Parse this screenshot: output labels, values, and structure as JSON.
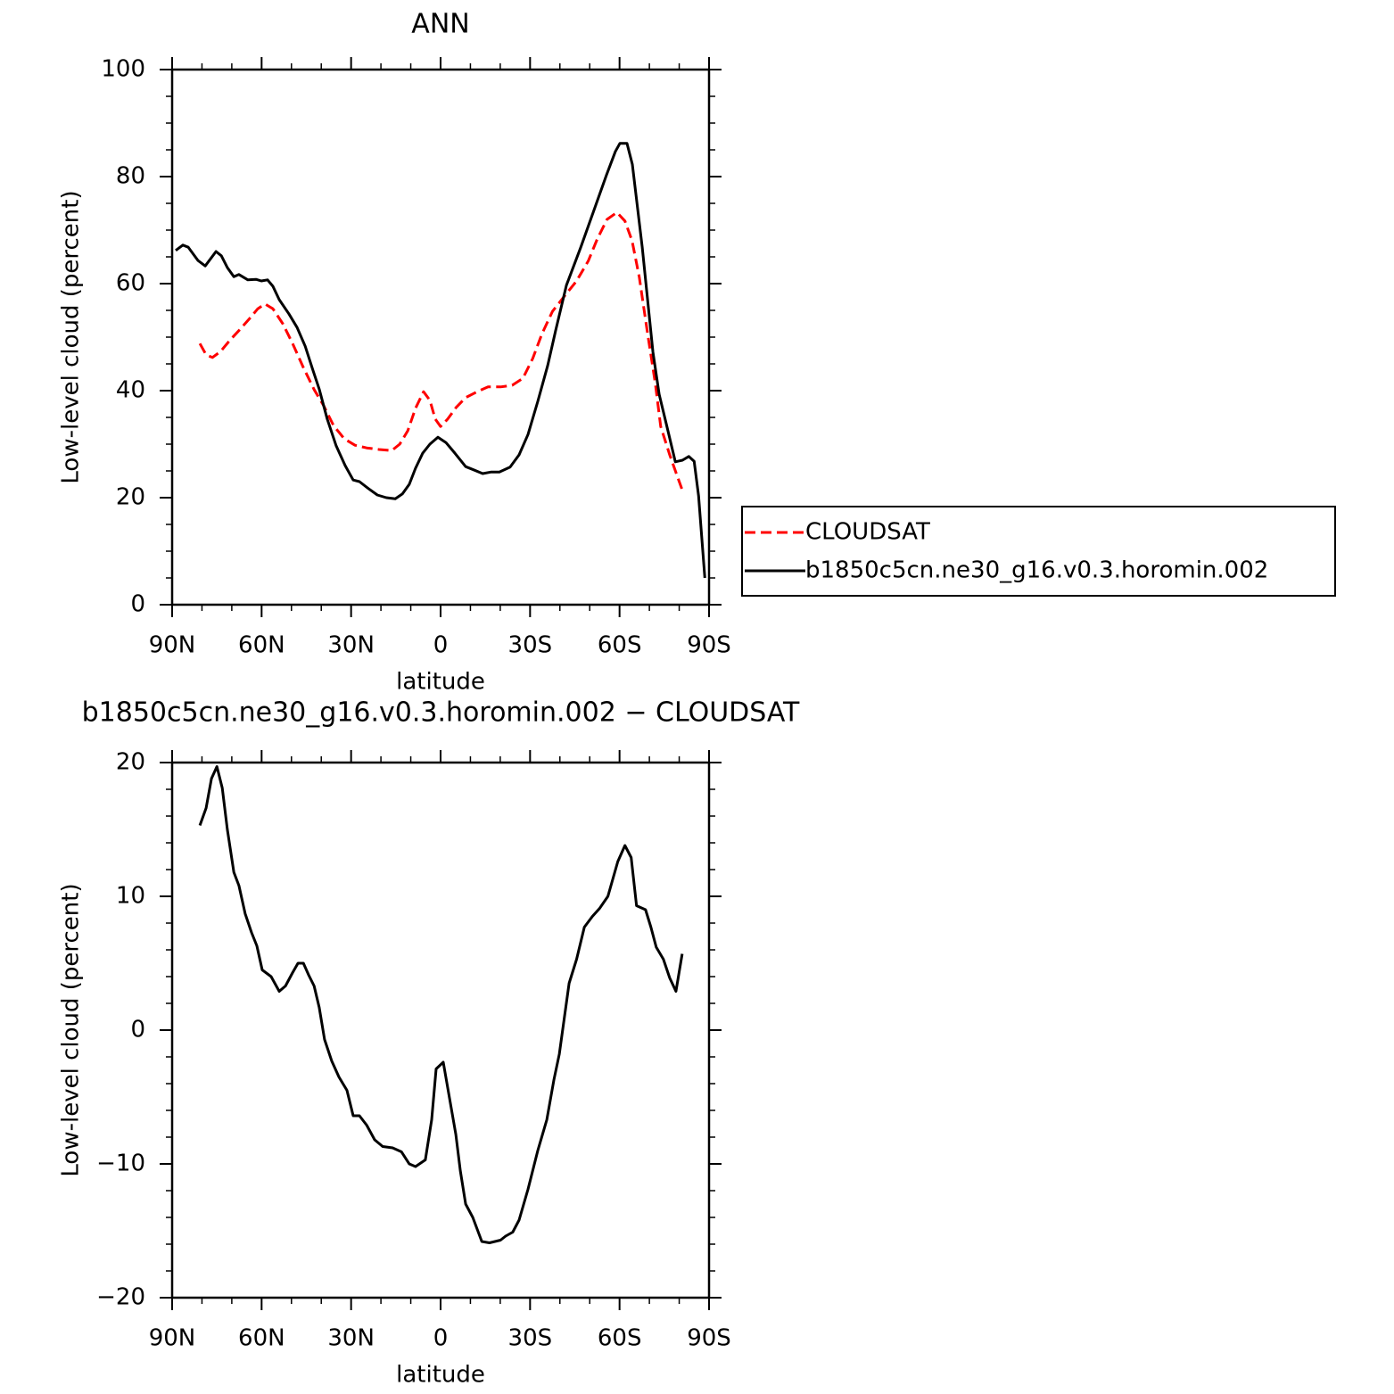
{
  "chart_data": [
    {
      "type": "line",
      "title": "ANN",
      "xlabel": "latitude",
      "ylabel": "Low-level cloud (percent)",
      "xlim": [
        90,
        -90
      ],
      "xticks": [
        {
          "value": 90,
          "label": "90N"
        },
        {
          "value": 60,
          "label": "60N"
        },
        {
          "value": 30,
          "label": "30N"
        },
        0,
        {
          "value": -30,
          "label": "30S"
        },
        {
          "value": -60,
          "label": "60S"
        },
        {
          "value": -90,
          "label": "90S"
        }
      ],
      "xminorticks": [
        80,
        70,
        50,
        40,
        20,
        10,
        -10,
        -20,
        -40,
        -50,
        -70,
        -80
      ],
      "ylim": [
        0,
        100
      ],
      "yticks": [
        0,
        20,
        40,
        60,
        80,
        100
      ],
      "yminorticks": [
        5,
        10,
        15,
        25,
        30,
        35,
        45,
        50,
        55,
        65,
        70,
        75,
        85,
        90,
        95
      ],
      "legend": "right",
      "series": [
        {
          "name": "CLOUDSAT",
          "color": "#ff0000",
          "style": "dashed",
          "x": [
            80.7,
            78.6,
            76.5,
            73.8,
            70.5,
            67.5,
            64,
            61.3,
            58.9,
            56.2,
            52.9,
            49.6,
            46,
            42.4,
            39.2,
            35.9,
            32.3,
            28.7,
            24.8,
            20.6,
            16.4,
            13.7,
            11,
            8.4,
            5.7,
            3.6,
            1.8,
            0,
            -2.4,
            -5.1,
            -8.4,
            -12.3,
            -15.9,
            -20.1,
            -24,
            -27.6,
            -30.9,
            -33.9,
            -37.5,
            -41.7,
            -45.6,
            -49.5,
            -52.5,
            -55.8,
            -59.1,
            -61.8,
            -64.2,
            -66.6,
            -69.3,
            -72,
            -73.8,
            -76.8,
            -78.9,
            -81.3
          ],
          "values": [
            48.8,
            46.7,
            46.2,
            47.3,
            49.5,
            51.3,
            53.5,
            55.3,
            56.2,
            55.3,
            52.5,
            48.8,
            44.3,
            40.2,
            37.2,
            33.5,
            31,
            29.8,
            29.3,
            29,
            28.8,
            30,
            32.5,
            36.7,
            39.8,
            38.2,
            34.7,
            33.3,
            34.7,
            36.8,
            38.7,
            39.8,
            40.7,
            40.7,
            41,
            42.3,
            46,
            50.5,
            54.8,
            57.8,
            60.5,
            64.2,
            68.3,
            72,
            73.3,
            71.7,
            68,
            61.3,
            51,
            41.3,
            33.3,
            28,
            24.7,
            21
          ]
        },
        {
          "name": "b1850c5cn.ne30_g16.v0.3.horomin.002",
          "color": "#000000",
          "style": "solid",
          "x": [
            88.8,
            86.4,
            84.6,
            81.3,
            78.9,
            75.3,
            73.5,
            71.5,
            69.3,
            67.6,
            64.6,
            61.9,
            60.1,
            58,
            56.2,
            54.1,
            50.8,
            48.1,
            45.4,
            42.8,
            40.7,
            38,
            35,
            32,
            29.3,
            27.2,
            24.2,
            21.2,
            18.2,
            15.2,
            12.8,
            10.5,
            8.4,
            6,
            3.6,
            0.9,
            -1.8,
            -4.5,
            -8.4,
            -11.1,
            -14.1,
            -17,
            -19.7,
            -23.3,
            -26.3,
            -29.3,
            -32.6,
            -35.9,
            -38.6,
            -42.2,
            -47,
            -51.8,
            -55.6,
            -58.6,
            -60.1,
            -62.5,
            -64.3,
            -67.6,
            -71.2,
            -73.3,
            -76,
            -78.7,
            -81.1,
            -83.2,
            -85,
            -86.5,
            -88.6
          ],
          "values": [
            66.2,
            67.2,
            66.8,
            64.3,
            63.3,
            66,
            65.2,
            63,
            61.3,
            61.7,
            60.7,
            60.8,
            60.5,
            60.7,
            59.5,
            57,
            54.3,
            51.8,
            48.3,
            43.8,
            40.3,
            34.7,
            29.7,
            26,
            23.3,
            23,
            21.7,
            20.5,
            20,
            19.8,
            20.7,
            22.5,
            25.5,
            28.3,
            30,
            31.3,
            30.3,
            28.5,
            25.8,
            25.2,
            24.5,
            24.8,
            24.8,
            25.7,
            28,
            31.8,
            38,
            44.7,
            51.3,
            59.7,
            66.8,
            74.3,
            80.3,
            84.7,
            86.2,
            86.2,
            82.3,
            66.8,
            47.2,
            39.3,
            33,
            26.7,
            27,
            27.7,
            26.8,
            20.3,
            5
          ]
        }
      ]
    },
    {
      "type": "line",
      "title": "b1850c5cn.ne30_g16.v0.3.horomin.002 − CLOUDSAT",
      "xlabel": "latitude",
      "ylabel": "Low-level cloud (percent)",
      "xlim": [
        90,
        -90
      ],
      "xticks": [
        {
          "value": 90,
          "label": "90N"
        },
        {
          "value": 60,
          "label": "60N"
        },
        {
          "value": 30,
          "label": "30N"
        },
        0,
        {
          "value": -30,
          "label": "30S"
        },
        {
          "value": -60,
          "label": "60S"
        },
        {
          "value": -90,
          "label": "90S"
        }
      ],
      "xminorticks": [
        80,
        70,
        50,
        40,
        20,
        10,
        -10,
        -20,
        -40,
        -50,
        -70,
        -80
      ],
      "ylim": [
        -20,
        20
      ],
      "yticks": [
        {
          "value": -20,
          "label": "−20"
        },
        {
          "value": -10,
          "label": "−10"
        },
        0,
        10,
        20
      ],
      "yminorticks": [
        -18,
        -16,
        -14,
        -12,
        -8,
        -6,
        -4,
        -2,
        2,
        4,
        6,
        8,
        12,
        14,
        16,
        18
      ],
      "series": [
        {
          "color": "#000000",
          "style": "solid",
          "x": [
            80.7,
            78.6,
            76.8,
            75,
            73.2,
            71.5,
            69.3,
            67.6,
            65.5,
            63.4,
            61.6,
            59.8,
            56.8,
            54.1,
            52,
            49.6,
            47.8,
            46,
            44.2,
            42.4,
            40.7,
            38.9,
            36.5,
            34.1,
            31.4,
            29.3,
            27.2,
            24.8,
            22.1,
            19.4,
            16.1,
            13.1,
            10.5,
            8.4,
            5.1,
            3,
            1.5,
            -0.9,
            -2.7,
            -5.1,
            -6.6,
            -8.4,
            -10.8,
            -13.8,
            -16.4,
            -20.1,
            -21.8,
            -24.2,
            -26.3,
            -29.3,
            -32.6,
            -35.6,
            -38,
            -39.8,
            -43.1,
            -45.6,
            -48.2,
            -50.9,
            -53.3,
            -56.1,
            -59.4,
            -61.8,
            -63.9,
            -65.7,
            -68.7,
            -70.5,
            -72.3,
            -74.7,
            -76.8,
            -78.9,
            -81
          ],
          "values": [
            15.3,
            16.6,
            18.8,
            19.7,
            18.1,
            15,
            11.8,
            10.8,
            8.7,
            7.3,
            6.3,
            4.5,
            4,
            2.9,
            3.3,
            4.3,
            5,
            5,
            4.1,
            3.3,
            1.7,
            -0.7,
            -2.3,
            -3.5,
            -4.5,
            -6.4,
            -6.4,
            -7.1,
            -8.2,
            -8.7,
            -8.8,
            -9.1,
            -10,
            -10.2,
            -9.7,
            -6.7,
            -2.9,
            -2.4,
            -4.7,
            -7.8,
            -10.5,
            -13,
            -14,
            -15.8,
            -15.9,
            -15.7,
            -15.4,
            -15.1,
            -14.2,
            -11.9,
            -9,
            -6.7,
            -3.7,
            -1.8,
            3.5,
            5.3,
            7.7,
            8.5,
            9.1,
            10,
            12.6,
            13.8,
            12.9,
            9.3,
            9,
            7.7,
            6.2,
            5.3,
            3.9,
            2.9,
            5.7
          ]
        }
      ]
    }
  ]
}
